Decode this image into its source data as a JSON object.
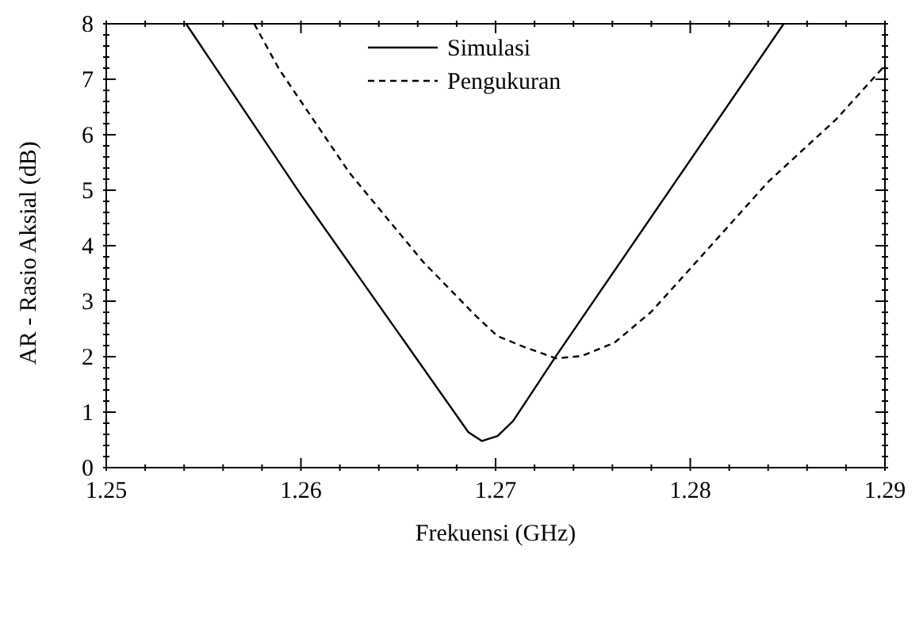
{
  "chart_data": {
    "type": "line",
    "xlabel": "Frekuensi (GHz)",
    "ylabel": "AR - Rasio Aksial (dB)",
    "xlim": [
      1.25,
      1.29
    ],
    "xticks": [
      1.25,
      {
        "value": 1.252,
        "label": null
      },
      {
        "value": 1.254,
        "label": null
      },
      {
        "value": 1.256,
        "label": null
      },
      {
        "value": 1.258,
        "label": null
      },
      1.26,
      {
        "value": 1.262,
        "label": null
      },
      {
        "value": 1.264,
        "label": null
      },
      {
        "value": 1.266,
        "label": null
      },
      {
        "value": 1.268,
        "label": null
      },
      1.27,
      {
        "value": 1.272,
        "label": null
      },
      {
        "value": 1.274,
        "label": null
      },
      {
        "value": 1.276,
        "label": null
      },
      {
        "value": 1.278,
        "label": null
      },
      1.28,
      {
        "value": 1.282,
        "label": null
      },
      {
        "value": 1.284,
        "label": null
      },
      {
        "value": 1.286,
        "label": null
      },
      {
        "value": 1.288,
        "label": null
      },
      1.29
    ],
    "ylim": [
      0,
      8
    ],
    "yticks": [
      0,
      {
        "value": 0.2,
        "label": null
      },
      {
        "value": 0.4,
        "label": null
      },
      {
        "value": 0.6,
        "label": null
      },
      {
        "value": 0.8,
        "label": null
      },
      1,
      {
        "value": 1.2,
        "label": null
      },
      {
        "value": 1.4,
        "label": null
      },
      {
        "value": 1.6,
        "label": null
      },
      {
        "value": 1.8,
        "label": null
      },
      2,
      {
        "value": 2.2,
        "label": null
      },
      {
        "value": 2.4,
        "label": null
      },
      {
        "value": 2.6,
        "label": null
      },
      {
        "value": 2.8,
        "label": null
      },
      3,
      {
        "value": 3.2,
        "label": null
      },
      {
        "value": 3.4,
        "label": null
      },
      {
        "value": 3.6,
        "label": null
      },
      {
        "value": 3.8,
        "label": null
      },
      4,
      {
        "value": 4.2,
        "label": null
      },
      {
        "value": 4.4,
        "label": null
      },
      {
        "value": 4.6,
        "label": null
      },
      {
        "value": 4.8,
        "label": null
      },
      5,
      {
        "value": 5.2,
        "label": null
      },
      {
        "value": 5.4,
        "label": null
      },
      {
        "value": 5.6,
        "label": null
      },
      {
        "value": 5.8,
        "label": null
      },
      6,
      {
        "value": 6.2,
        "label": null
      },
      {
        "value": 6.4,
        "label": null
      },
      {
        "value": 6.6,
        "label": null
      },
      {
        "value": 6.8,
        "label": null
      },
      7,
      {
        "value": 7.2,
        "label": null
      },
      {
        "value": 7.4,
        "label": null
      },
      {
        "value": 7.6,
        "label": null
      },
      {
        "value": 7.8,
        "label": null
      },
      8
    ],
    "legend": "top",
    "marker": "none",
    "series": [
      {
        "name": "Simulasi",
        "color": "#000000",
        "line_style": "solid",
        "x": [
          1.2541,
          1.26,
          1.2686,
          1.2693,
          1.2701,
          1.2709,
          1.2731,
          1.2848
        ],
        "values": [
          8,
          4.92,
          0.64,
          0.48,
          0.57,
          0.84,
          2.01,
          8
        ]
      },
      {
        "name": "Pengukuran",
        "color": "#000000",
        "line_style": "dashed",
        "x": [
          1.2576,
          1.2589,
          1.2625,
          1.2663,
          1.269,
          1.2701,
          1.2715,
          1.2731,
          1.2744,
          1.2761,
          1.278,
          1.2807,
          1.284,
          1.2875,
          1.2899
        ],
        "values": [
          8,
          7.17,
          5.31,
          3.7,
          2.73,
          2.37,
          2.17,
          1.97,
          2.01,
          2.25,
          2.81,
          3.86,
          5.15,
          6.28,
          7.21
        ]
      }
    ]
  }
}
